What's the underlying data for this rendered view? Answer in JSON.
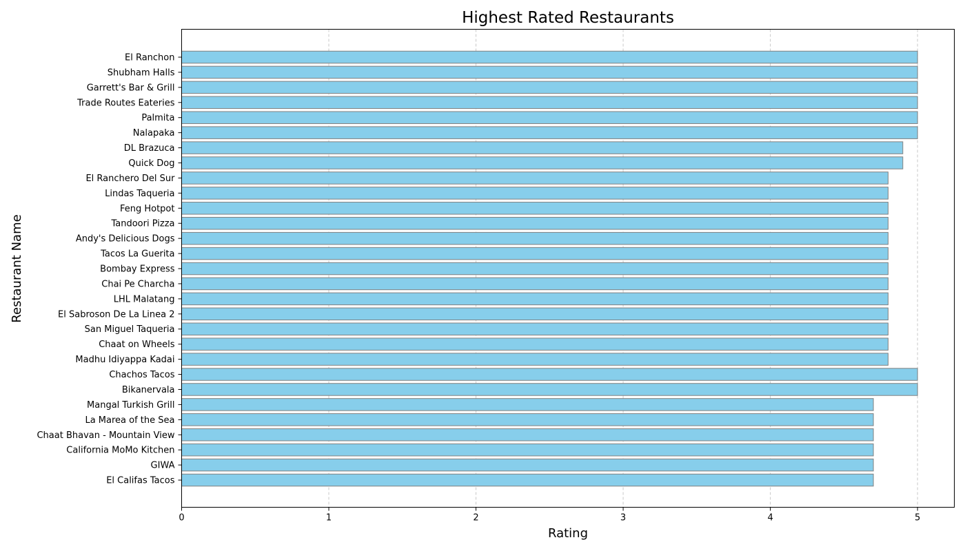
{
  "chart_data": {
    "type": "bar",
    "orientation": "horizontal",
    "title": "Highest Rated Restaurants",
    "xlabel": "Rating",
    "ylabel": "Restaurant Name",
    "xlim": [
      0,
      5.25
    ],
    "xticks": [
      0,
      1,
      2,
      3,
      4,
      5
    ],
    "grid": "x-dashed",
    "bar_color": "#87ceeb",
    "bar_edge_color": "#808080",
    "categories": [
      "El Ranchon",
      "Shubham Halls",
      "Garrett's Bar & Grill",
      "Trade Routes Eateries",
      "Palmita",
      "Nalapaka",
      "DL Brazuca",
      "Quick Dog",
      "El Ranchero Del Sur",
      "Lindas Taqueria",
      "Feng Hotpot",
      "Tandoori Pizza",
      "Andy's Delicious Dogs",
      "Tacos La Guerita",
      "Bombay Express",
      "Chai Pe Charcha",
      "LHL Malatang",
      "El Sabroson De La Linea 2",
      "San Miguel Taqueria",
      "Chaat on Wheels",
      "Madhu Idiyappa Kadai",
      "Chachos Tacos",
      "Bikanervala",
      "Mangal Turkish Grill",
      "La Marea of the Sea",
      "Chaat Bhavan - Mountain View",
      "California MoMo Kitchen",
      "GIWA",
      "El Califas Tacos"
    ],
    "values": [
      5.0,
      5.0,
      5.0,
      5.0,
      5.0,
      5.0,
      4.9,
      4.9,
      4.8,
      4.8,
      4.8,
      4.8,
      4.8,
      4.8,
      4.8,
      4.8,
      4.8,
      4.8,
      4.8,
      4.8,
      4.8,
      5.0,
      5.0,
      4.7,
      4.7,
      4.7,
      4.7,
      4.7,
      4.7
    ]
  }
}
